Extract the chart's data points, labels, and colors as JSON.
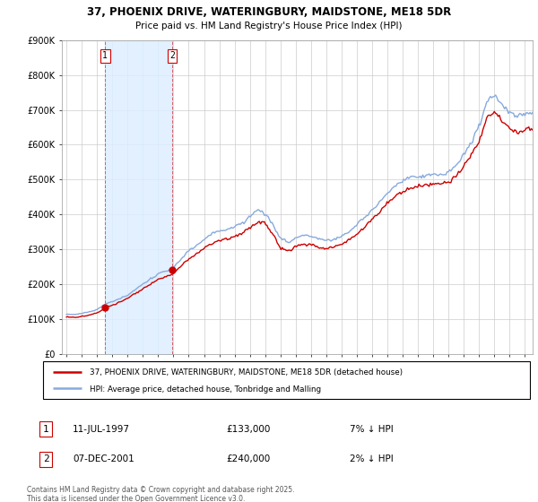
{
  "title_line1": "37, PHOENIX DRIVE, WATERINGBURY, MAIDSTONE, ME18 5DR",
  "title_line2": "Price paid vs. HM Land Registry's House Price Index (HPI)",
  "ylim": [
    0,
    900000
  ],
  "yticks": [
    0,
    100000,
    200000,
    300000,
    400000,
    500000,
    600000,
    700000,
    800000,
    900000
  ],
  "ytick_labels": [
    "£0",
    "£100K",
    "£200K",
    "£300K",
    "£400K",
    "£500K",
    "£600K",
    "£700K",
    "£800K",
    "£900K"
  ],
  "xlim_left": 1994.7,
  "xlim_right": 2025.5,
  "sale1_year": 1997.53,
  "sale1_price": 133000,
  "sale1_label": "11-JUL-1997",
  "sale1_value": "£133,000",
  "sale1_note": "7% ↓ HPI",
  "sale2_year": 2001.92,
  "sale2_price": 240000,
  "sale2_label": "07-DEC-2001",
  "sale2_value": "£240,000",
  "sale2_note": "2% ↓ HPI",
  "legend_line1": "37, PHOENIX DRIVE, WATERINGBURY, MAIDSTONE, ME18 5DR (detached house)",
  "legend_line2": "HPI: Average price, detached house, Tonbridge and Malling",
  "footer": "Contains HM Land Registry data © Crown copyright and database right 2025.\nThis data is licensed under the Open Government Licence v3.0.",
  "red_color": "#cc0000",
  "blue_color": "#88aadd",
  "fill_color": "#ddeeff",
  "grid_color": "#cccccc"
}
